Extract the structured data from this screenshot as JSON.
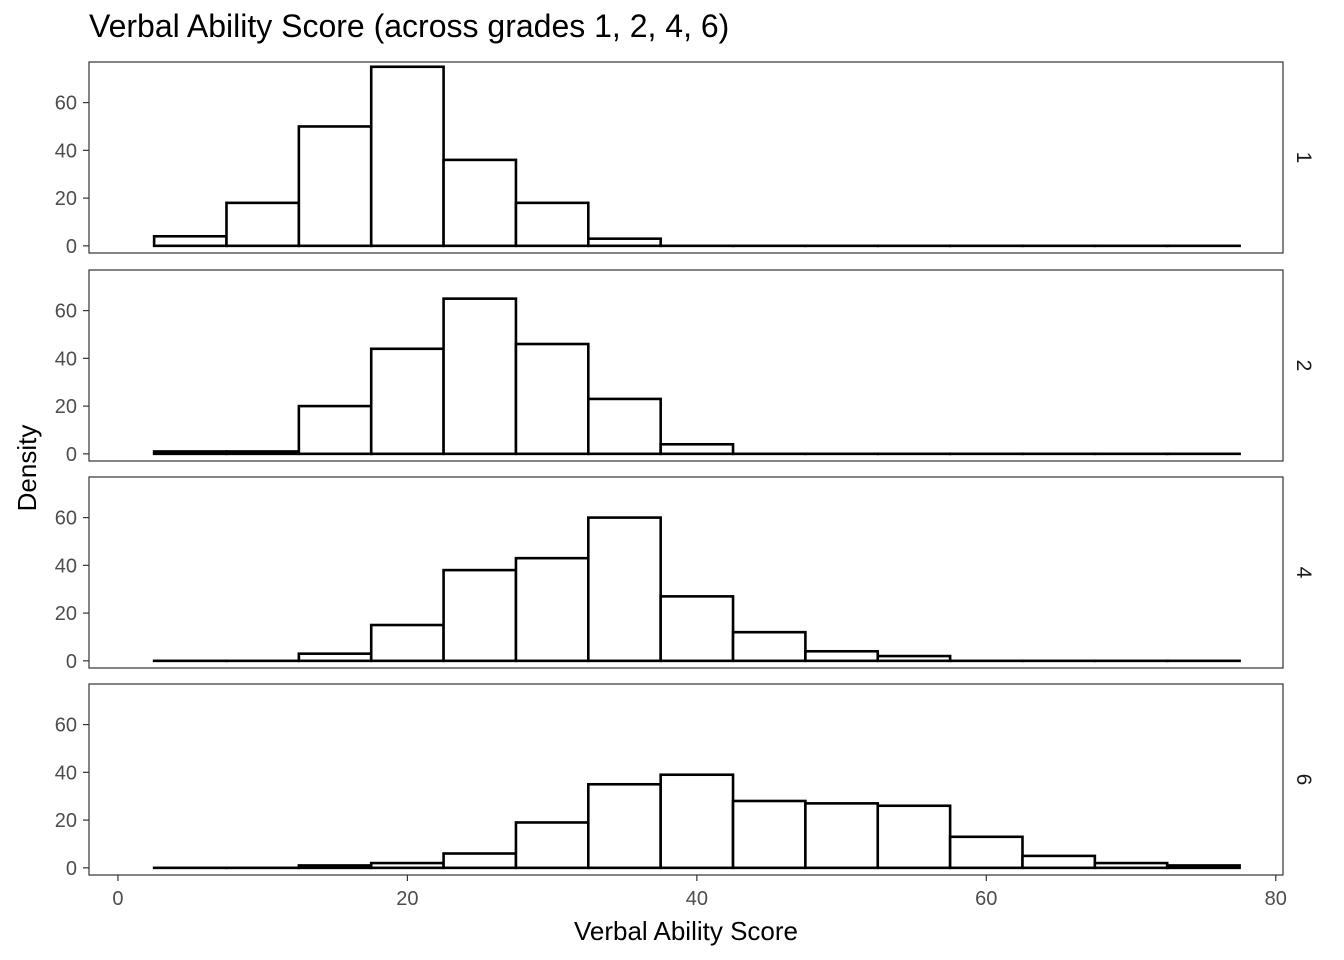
{
  "chart_data": {
    "type": "bar",
    "title": "Verbal Ability Score (across grades 1, 2, 4, 6)",
    "xlabel": "Verbal Ability Score",
    "ylabel": "Density",
    "xlim": [
      -2,
      80.5
    ],
    "ylim": [
      -3,
      77
    ],
    "x_ticks": [
      0,
      20,
      40,
      60,
      80
    ],
    "y_ticks": [
      0,
      20,
      40,
      60
    ],
    "grid": false,
    "bin_width": 5,
    "bin_centers": [
      5,
      10,
      15,
      20,
      25,
      30,
      35,
      40,
      45,
      50,
      55,
      60,
      65,
      70,
      75
    ],
    "series": [
      {
        "name": "1",
        "values": [
          4,
          18,
          50,
          75,
          36,
          18,
          3,
          0,
          0,
          0,
          0,
          0,
          0,
          0,
          0
        ]
      },
      {
        "name": "2",
        "values": [
          1,
          1,
          20,
          44,
          65,
          46,
          23,
          4,
          0,
          0,
          0,
          0,
          0,
          0,
          0
        ]
      },
      {
        "name": "4",
        "values": [
          0,
          0,
          3,
          15,
          38,
          43,
          60,
          27,
          12,
          4,
          2,
          0,
          0,
          0,
          0
        ]
      },
      {
        "name": "6",
        "values": [
          0,
          0,
          1,
          2,
          6,
          19,
          35,
          39,
          28,
          27,
          26,
          13,
          5,
          2,
          1
        ]
      }
    ]
  }
}
